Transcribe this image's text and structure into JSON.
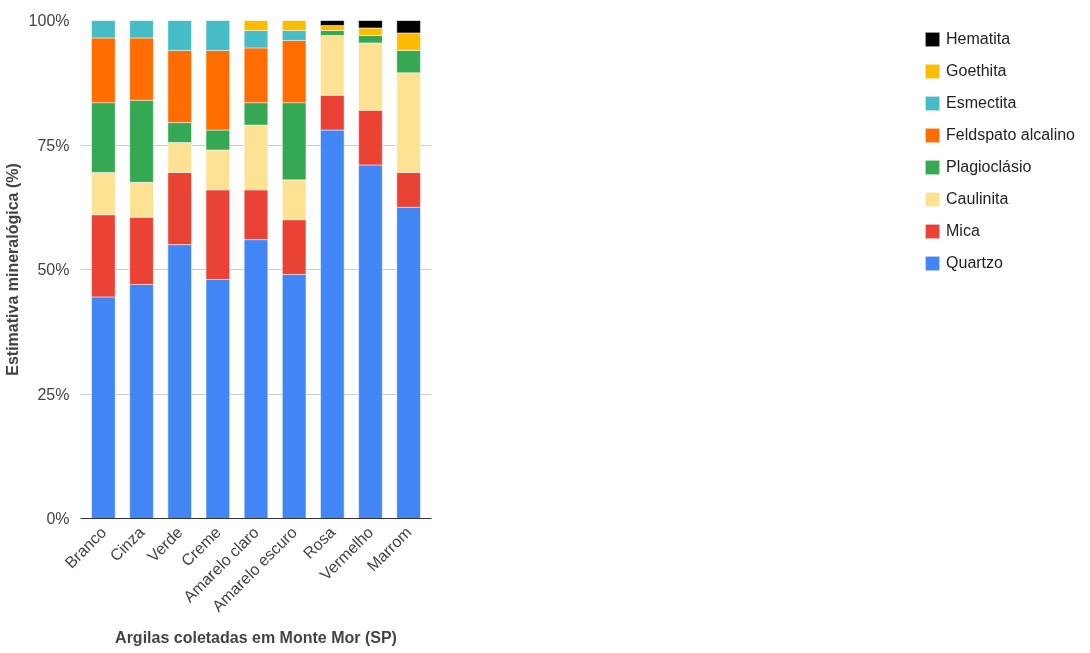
{
  "chart_data": {
    "type": "bar",
    "stacked": true,
    "xlabel": "Argilas coletadas em Monte Mor (SP)",
    "ylabel": "Estimativa mineralógica (%)",
    "categories": [
      "Branco",
      "Cinza",
      "Verde",
      "Creme",
      "Amarelo claro",
      "Amarelo escuro",
      "Rosa",
      "Vermelho",
      "Marrom"
    ],
    "ylim": [
      0,
      100
    ],
    "yticks": [
      {
        "value": 0,
        "label": "0%"
      },
      {
        "value": 25,
        "label": "25%"
      },
      {
        "value": 50,
        "label": "50%"
      },
      {
        "value": 75,
        "label": "75%"
      },
      {
        "value": 100,
        "label": "100%"
      }
    ],
    "grid": "y",
    "legend": "right",
    "series": [
      {
        "name": "Quartzo",
        "color": "#4285f4",
        "values": [
          44.5,
          47,
          55,
          48,
          56,
          49,
          78,
          71,
          62.5
        ]
      },
      {
        "name": "Mica",
        "color": "#ea4335",
        "values": [
          16.5,
          13.5,
          14.5,
          18,
          10,
          11,
          7,
          11,
          7
        ]
      },
      {
        "name": "Caulinita",
        "color": "#fde293",
        "values": [
          8.5,
          7,
          6,
          8,
          13,
          8,
          12,
          13.5,
          20
        ]
      },
      {
        "name": "Plagioclásio",
        "color": "#34a853",
        "values": [
          14,
          16.5,
          4,
          4,
          4.5,
          15.5,
          1,
          1.5,
          4.5
        ]
      },
      {
        "name": "Feldspato alcalino",
        "color": "#ff6d01",
        "values": [
          13,
          12.5,
          14.5,
          16,
          11,
          12.5,
          0,
          0,
          0
        ]
      },
      {
        "name": "Esmectita",
        "color": "#46bdc6",
        "values": [
          3.5,
          3.5,
          6,
          6,
          3.5,
          2,
          0,
          0,
          0
        ]
      },
      {
        "name": "Goethita",
        "color": "#fbbc04",
        "values": [
          0,
          0,
          0,
          0,
          2,
          2,
          1,
          1.5,
          3.5
        ]
      },
      {
        "name": "Hematita",
        "color": "#000000",
        "values": [
          0,
          0,
          0,
          0,
          0,
          0,
          1,
          1.5,
          2.5
        ]
      }
    ]
  }
}
